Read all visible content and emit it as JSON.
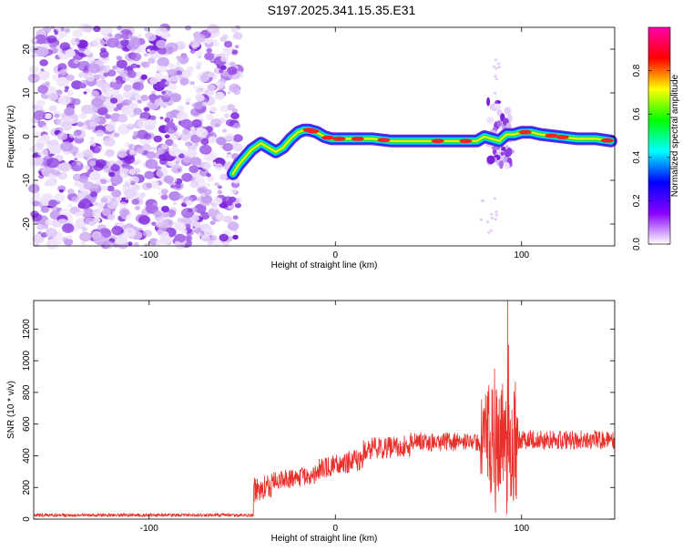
{
  "title": "S197.2025.341.15.35.E31",
  "chart_data": [
    {
      "type": "heatmap",
      "name": "spectrogram",
      "xlabel": "Height of straight line (km)",
      "ylabel": "Frequency (Hz)",
      "xlim": [
        -162,
        150
      ],
      "ylim": [
        -25,
        25
      ],
      "xticks": [
        -100,
        0,
        100
      ],
      "yticks": [
        -20,
        -10,
        0,
        10,
        20
      ],
      "noise_region_x": [
        -162,
        -52
      ],
      "ridge": {
        "x": [
          -55,
          -52,
          -48,
          -45,
          -40,
          -36,
          -32,
          -28,
          -24,
          -20,
          -17,
          -14,
          -10,
          -6,
          -2,
          2,
          10,
          20,
          30,
          40,
          50,
          60,
          70,
          76,
          80,
          84,
          88,
          92,
          96,
          100,
          105,
          110,
          120,
          130,
          140,
          148
        ],
        "f": [
          -8.5,
          -6.5,
          -4.5,
          -3.0,
          -1.5,
          -2.5,
          -3.5,
          -2.5,
          -0.5,
          1.0,
          1.5,
          1.5,
          1.0,
          0.0,
          -0.5,
          -0.5,
          -0.5,
          -0.5,
          -1.0,
          -1.0,
          -1.0,
          -1.0,
          -1.0,
          -1.0,
          0.0,
          -0.5,
          -1.0,
          0.5,
          0.5,
          1.0,
          1.0,
          0.5,
          0.0,
          -0.5,
          -0.5,
          -1.0
        ],
        "peak_x": [
          -14,
          -12,
          -4,
          2,
          12,
          26,
          55,
          70,
          102,
          116,
          122,
          146
        ]
      },
      "colorbar": {
        "label": "Normalized spectral amplitude",
        "ticks": [
          0.0,
          0.2,
          0.4,
          0.6,
          0.8
        ],
        "tick_labels": [
          "0.0",
          "0.2",
          "0.4",
          "0.6",
          "0.8"
        ],
        "range": [
          0,
          1
        ],
        "colors": [
          "#ffffff",
          "#8800ff",
          "#0000ff",
          "#00ffff",
          "#00ff00",
          "#ffff00",
          "#ff0000",
          "#ff00aa"
        ]
      }
    },
    {
      "type": "line",
      "name": "snr",
      "xlabel": "Height of straight line (km)",
      "ylabel": "SNR (10 * v/v)",
      "xlim": [
        -162,
        150
      ],
      "ylim": [
        0,
        1380
      ],
      "xticks": [
        -100,
        0,
        100
      ],
      "yticks": [
        0,
        200,
        400,
        600,
        800,
        1000,
        1200
      ],
      "line_color": "#e8302a",
      "segments": [
        {
          "x_start": -162,
          "x_end": -44,
          "level": 25,
          "jitter": 10
        },
        {
          "x_start": -44,
          "x_end": -34,
          "level": 180,
          "jitter": 80
        },
        {
          "x_start": -34,
          "x_end": -10,
          "level": 240,
          "jitter": 60
        },
        {
          "x_start": -10,
          "x_end": 15,
          "level": 320,
          "jitter": 70
        },
        {
          "x_start": 15,
          "x_end": 40,
          "level": 440,
          "jitter": 70
        },
        {
          "x_start": 40,
          "x_end": 78,
          "level": 490,
          "jitter": 60
        },
        {
          "x_start": 78,
          "x_end": 98,
          "level": 480,
          "jitter": 380
        },
        {
          "x_start": 98,
          "x_end": 150,
          "level": 500,
          "jitter": 60
        }
      ],
      "spikes": [
        {
          "x": 85.5,
          "y": 950
        },
        {
          "x": 86.5,
          "y": 820
        },
        {
          "x": 88,
          "y": 760
        },
        {
          "x": 92.5,
          "y": 1380
        },
        {
          "x": 93,
          "y": 1100
        },
        {
          "x": 92,
          "y": 30
        },
        {
          "x": 86,
          "y": 40
        }
      ]
    }
  ]
}
